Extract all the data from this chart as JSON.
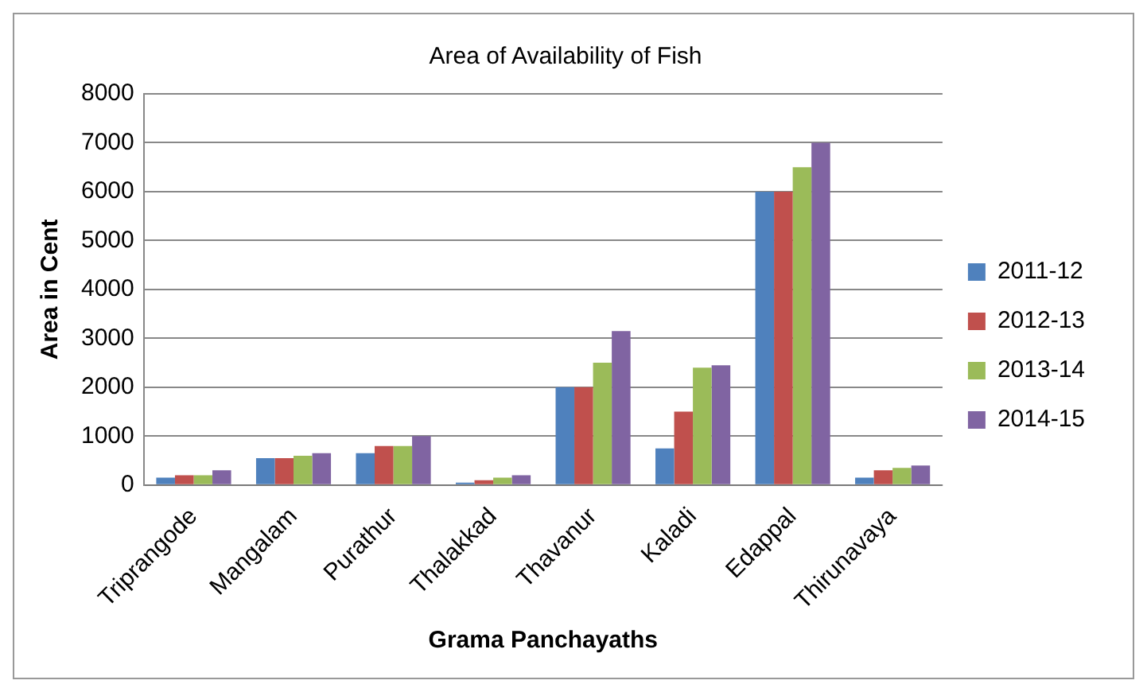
{
  "chart_data": {
    "type": "bar",
    "title": "Area of Availability of Fish",
    "xlabel": "Grama Panchayaths",
    "ylabel": "Area in Cent",
    "categories": [
      "Triprangode",
      "Mangalam",
      "Purathur",
      "Thalakkad",
      "Thavanur",
      "Kaladi",
      "Edappal",
      "Thirunavaya"
    ],
    "series": [
      {
        "name": "2011-12",
        "color": "#4f81bd",
        "values": [
          150,
          550,
          650,
          50,
          2000,
          750,
          6000,
          150
        ]
      },
      {
        "name": "2012-13",
        "color": "#c0504d",
        "values": [
          200,
          550,
          800,
          100,
          2000,
          1500,
          6000,
          300
        ]
      },
      {
        "name": "2013-14",
        "color": "#9bbb59",
        "values": [
          200,
          600,
          800,
          150,
          2500,
          2400,
          6500,
          350
        ]
      },
      {
        "name": "2014-15",
        "color": "#8064a2",
        "values": [
          300,
          650,
          1000,
          200,
          3150,
          2450,
          7000,
          400
        ]
      }
    ],
    "ylim": [
      0,
      8000
    ],
    "yticks": [
      0,
      1000,
      2000,
      3000,
      4000,
      5000,
      6000,
      7000,
      8000
    ],
    "grid": "y",
    "legend": "right"
  }
}
